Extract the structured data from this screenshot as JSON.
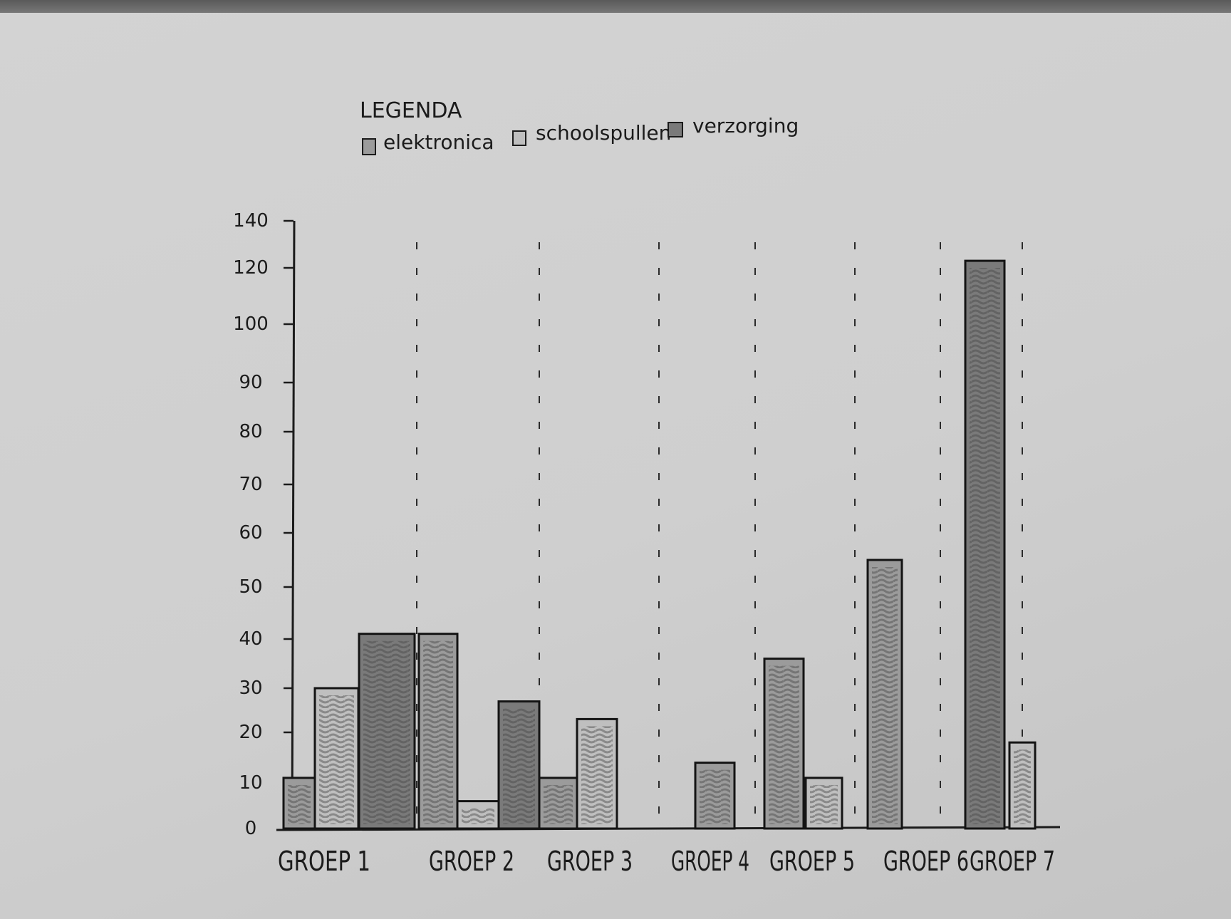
{
  "legend": {
    "title": "LEGENDA",
    "items": [
      {
        "label": "elektronica",
        "color": "#9b9b9b"
      },
      {
        "label": "schoolspullen",
        "color": "#bfbfbf"
      },
      {
        "label": "verzorging",
        "color": "#7a7a7a"
      }
    ]
  },
  "chart_data": {
    "type": "bar",
    "categories": [
      "GROEP 1",
      "GROEP 2",
      "GROEP 3",
      "GROEP 4",
      "GROEP 5",
      "GROEP 6",
      "GROEP 7"
    ],
    "yticks": [
      0,
      10,
      20,
      30,
      40,
      50,
      60,
      70,
      80,
      90,
      100,
      120,
      140
    ],
    "ylim": [
      0,
      140
    ],
    "bars": [
      {
        "category": "GROEP 1",
        "series": "elektronica",
        "value": 11
      },
      {
        "category": "GROEP 1",
        "series": "schoolspullen",
        "value": 30
      },
      {
        "category": "GROEP 1",
        "series": "verzorging",
        "value": 41
      },
      {
        "category": "GROEP 2",
        "series": "elektronica",
        "value": 41
      },
      {
        "category": "GROEP 2",
        "series": "schoolspullen",
        "value": 6
      },
      {
        "category": "GROEP 2",
        "series": "verzorging",
        "value": 27
      },
      {
        "category": "GROEP 3",
        "series": "elektronica",
        "value": 11
      },
      {
        "category": "GROEP 3",
        "series": "schoolspullen",
        "value": 23
      },
      {
        "category": "GROEP 4",
        "series": "elektronica",
        "value": 14
      },
      {
        "category": "GROEP 5",
        "series": "elektronica",
        "value": 36
      },
      {
        "category": "GROEP 5",
        "series": "schoolspullen",
        "value": 11
      },
      {
        "category": "GROEP 6",
        "series": "elektronica",
        "value": 55
      },
      {
        "category": "GROEP 6",
        "series": "verzorging",
        "value": 123
      },
      {
        "category": "GROEP 7",
        "series": "schoolspullen",
        "value": 18
      }
    ],
    "grid": false,
    "legend_position": "top-left"
  }
}
